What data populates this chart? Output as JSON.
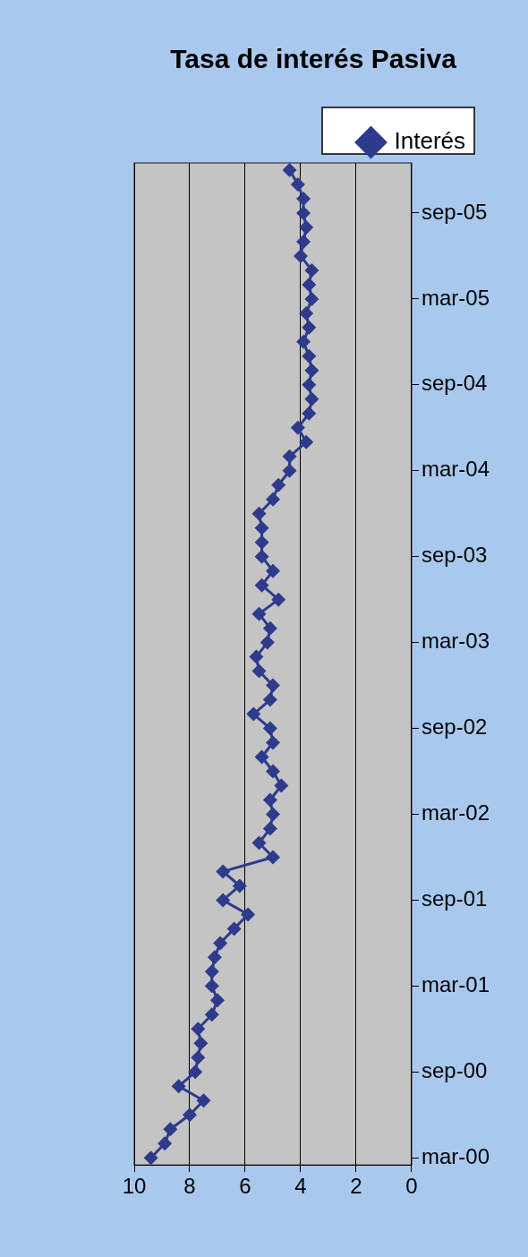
{
  "chart_data": {
    "type": "line",
    "title": "Tasa de interés Pasiva",
    "orientation": "horizontal",
    "categories": [
      null,
      null,
      null,
      "sep-05",
      null,
      null,
      null,
      null,
      null,
      "mar-05",
      null,
      null,
      null,
      null,
      null,
      "sep-04",
      null,
      null,
      null,
      null,
      null,
      "mar-04",
      null,
      null,
      null,
      null,
      null,
      "sep-03",
      null,
      null,
      null,
      null,
      null,
      "mar-03",
      null,
      null,
      null,
      null,
      null,
      "sep-02",
      null,
      null,
      null,
      null,
      null,
      "mar-02",
      null,
      null,
      null,
      null,
      null,
      "sep-01",
      null,
      null,
      null,
      null,
      null,
      "mar-01",
      null,
      null,
      null,
      null,
      null,
      "sep-00",
      null,
      null,
      null,
      null,
      null,
      "mar-00"
    ],
    "series": [
      {
        "name": "Interés",
        "color": "#2e3a8c",
        "values": [
          4.4,
          4.1,
          3.9,
          3.9,
          3.8,
          3.9,
          4.0,
          3.6,
          3.7,
          3.6,
          3.8,
          3.7,
          3.9,
          3.7,
          3.6,
          3.7,
          3.6,
          3.7,
          4.1,
          3.8,
          4.4,
          4.4,
          4.8,
          5.0,
          5.5,
          5.4,
          5.4,
          5.4,
          5.0,
          5.4,
          4.8,
          5.5,
          5.1,
          5.2,
          5.6,
          5.5,
          5.0,
          5.1,
          5.7,
          5.1,
          5.0,
          5.4,
          5.0,
          4.7,
          5.1,
          5.0,
          5.1,
          5.5,
          5.0,
          6.8,
          6.2,
          6.8,
          5.9,
          6.4,
          6.9,
          7.1,
          7.2,
          7.2,
          7.0,
          7.2,
          7.7,
          7.6,
          7.7,
          7.8,
          8.4,
          7.5,
          8.0,
          8.7,
          8.9,
          9.4
        ]
      }
    ],
    "xlim": [
      10,
      0
    ],
    "xticks": [
      10,
      8,
      6,
      4,
      2,
      0
    ],
    "grid": "x",
    "legend": "top right",
    "marker": "diamond",
    "line_style": "solid"
  }
}
